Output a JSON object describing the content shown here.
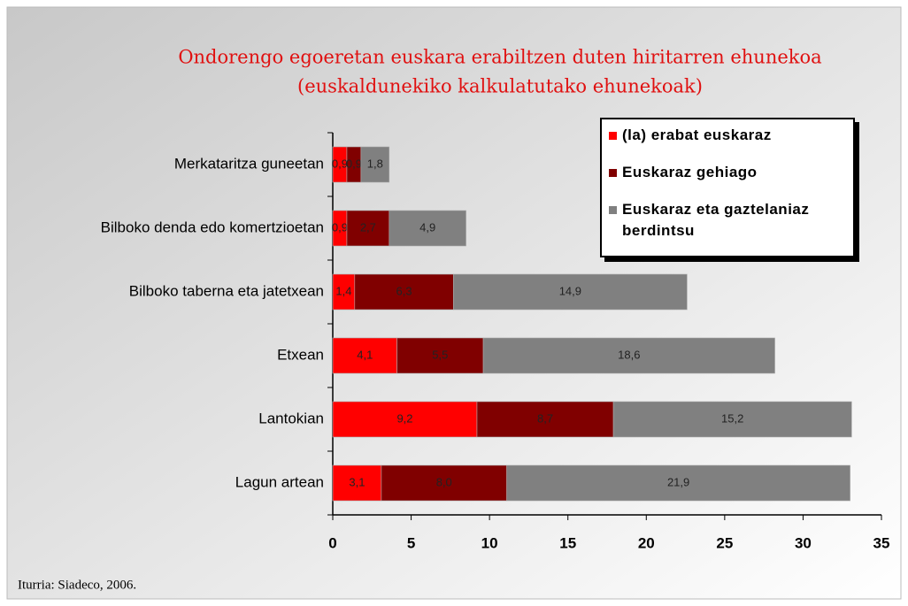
{
  "chart_data": {
    "type": "stacked-bar-horizontal",
    "title": "Ondorengo egoeretan euskara erabiltzen duten hiritarren ehunekoa",
    "subtitle": "(euskaldunekiko kalkulatutako ehunekoak)",
    "source": "Iturria: Siadeco, 2006.",
    "categories": [
      "Merkataritza guneetan",
      "Bilboko denda edo komertzioetan",
      "Bilboko taberna eta jatetxean",
      "Etxean",
      "Lantokian",
      "Lagun artean"
    ],
    "series": [
      {
        "name": "(la) erabat euskaraz",
        "color": "#ff0000",
        "values": [
          0.9,
          0.9,
          1.4,
          4.1,
          9.2,
          3.1
        ],
        "value_labels": [
          "0,9",
          "0,9",
          "1,4",
          "4,1",
          "9,2",
          "3,1"
        ]
      },
      {
        "name": "Euskaraz gehiago",
        "color": "#800000",
        "values": [
          0.9,
          2.7,
          6.3,
          5.5,
          8.7,
          8.0
        ],
        "value_labels": [
          "0,9",
          "2,7",
          "6,3",
          "5,5",
          "8,7",
          "8,0"
        ]
      },
      {
        "name": "Euskaraz eta gaztelaniaz berdintsu",
        "color": "#808080",
        "values": [
          1.8,
          4.9,
          14.9,
          18.6,
          15.2,
          21.9
        ],
        "value_labels": [
          "1,8",
          "4,9",
          "14,9",
          "18,6",
          "15,2",
          "21,9"
        ]
      }
    ],
    "xlim": [
      0,
      35
    ],
    "xticks": [
      0,
      5,
      10,
      15,
      20,
      25,
      30,
      35
    ],
    "legend": "top-right"
  }
}
